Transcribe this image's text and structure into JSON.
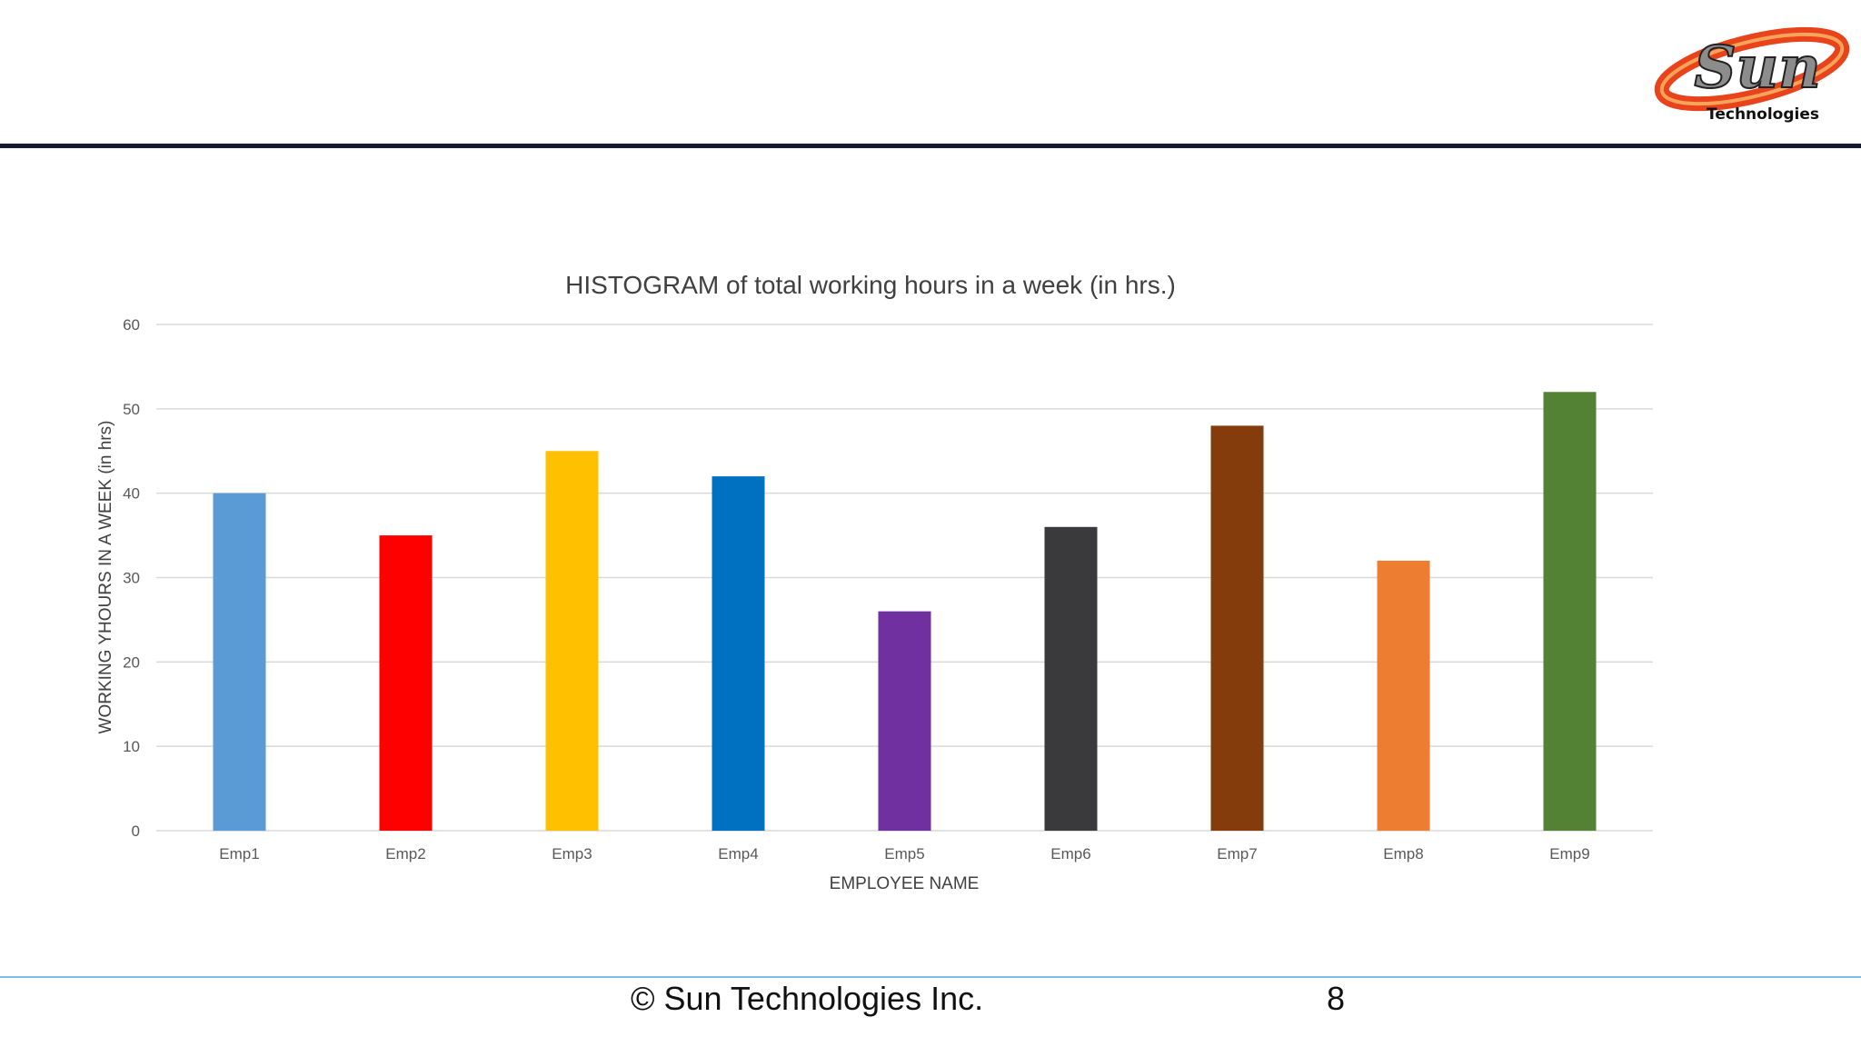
{
  "logo": {
    "letters": "Sun",
    "text": "Technologies"
  },
  "footer": {
    "copyright": "© Sun Technologies Inc.",
    "page_number": "8"
  },
  "colors": {
    "rule": "#0f1b2e",
    "footer_rule": "#7fbcec",
    "grid": "#d9d9d9"
  },
  "chart_data": {
    "type": "bar",
    "title": "HISTOGRAM of total working hours in a week (in hrs.)",
    "xlabel": "EMPLOYEE NAME",
    "ylabel": "WORKING YHOURS IN A WEEK (in  hrs)",
    "ylim": [
      0,
      60
    ],
    "yticks": [
      0,
      10,
      20,
      30,
      40,
      50,
      60
    ],
    "grid": true,
    "legend": "none",
    "categories": [
      "Emp1",
      "Emp2",
      "Emp3",
      "Emp4",
      "Emp5",
      "Emp6",
      "Emp7",
      "Emp8",
      "Emp9"
    ],
    "values": [
      40,
      35,
      45,
      42,
      26,
      36,
      48,
      32,
      52
    ],
    "bar_colors": [
      "#5b9bd5",
      "#ff0000",
      "#ffc000",
      "#0070c0",
      "#7030a0",
      "#3a3a3c",
      "#843c0c",
      "#ed7d31",
      "#548235"
    ]
  }
}
